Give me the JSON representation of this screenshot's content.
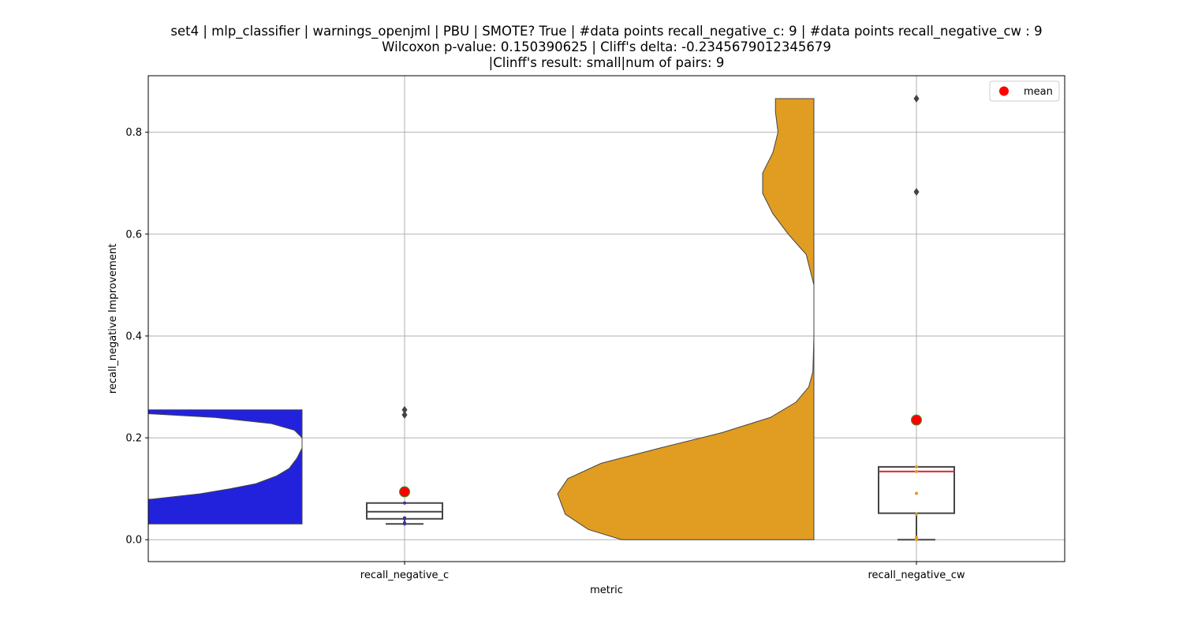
{
  "title_lines": [
    "set4 | mlp_classifier | warnings_openjml | PBU | SMOTE? True | #data points recall_negative_c: 9 | #data points recall_negative_cw : 9",
    "Wilcoxon p-value: 0.150390625 | Cliff's delta: -0.2345679012345679",
    "|Clinff's result: small|num of pairs: 9"
  ],
  "chart_data": {
    "type": "violin+box",
    "xlabel": "metric",
    "ylabel": "recall_negative Improvement",
    "categories": [
      "recall_negative_c",
      "recall_negative_cw"
    ],
    "ylim": [
      -0.043,
      0.911
    ],
    "yticks": [
      0.0,
      0.2,
      0.4,
      0.6,
      0.8
    ],
    "ytick_labels": [
      "0.0",
      "0.2",
      "0.4",
      "0.6",
      "0.8"
    ],
    "grid": true,
    "legend": {
      "placement": "top-right",
      "entries": [
        {
          "label": "mean",
          "color": "#ff0000",
          "marker": "circle"
        }
      ]
    },
    "colors": {
      "c_violin": "#2222dd",
      "cw_violin": "#e09d22",
      "mean_marker": "#ff0000",
      "mean_edge": "#2ca02c",
      "median_cw": "#d62728",
      "box_edge": "#444444",
      "outlier": "#444444",
      "grid": "#b0b0b0"
    },
    "series": [
      {
        "category": "recall_negative_c",
        "violin_side": "left",
        "violin_range": [
          0.031,
          0.255
        ],
        "violin_profile": [
          [
            0.031,
            1.0
          ],
          [
            0.066,
            1.0
          ],
          [
            0.072,
            0.78
          ],
          [
            0.08,
            0.58
          ],
          [
            0.09,
            0.4
          ],
          [
            0.1,
            0.28
          ],
          [
            0.11,
            0.18
          ],
          [
            0.125,
            0.1
          ],
          [
            0.14,
            0.05
          ],
          [
            0.16,
            0.02
          ],
          [
            0.18,
            0.0
          ],
          [
            0.2,
            0.0
          ],
          [
            0.215,
            0.03
          ],
          [
            0.228,
            0.12
          ],
          [
            0.24,
            0.34
          ],
          [
            0.248,
            0.62
          ],
          [
            0.252,
            0.78
          ],
          [
            0.255,
            0.78
          ]
        ],
        "box": {
          "q1": 0.041,
          "median": 0.055,
          "q3": 0.072,
          "whisker_low": 0.031,
          "whisker_high": 0.072
        },
        "outliers": [
          0.245,
          0.255
        ],
        "points": [
          0.031,
          0.033,
          0.041,
          0.043,
          0.072
        ],
        "mean": 0.094
      },
      {
        "category": "recall_negative_cw",
        "violin_side": "left",
        "violin_range": [
          0.0,
          0.866
        ],
        "violin_profile": [
          [
            0.0,
            0.75
          ],
          [
            0.02,
            0.88
          ],
          [
            0.05,
            0.97
          ],
          [
            0.09,
            1.0
          ],
          [
            0.12,
            0.96
          ],
          [
            0.15,
            0.83
          ],
          [
            0.18,
            0.6
          ],
          [
            0.21,
            0.36
          ],
          [
            0.24,
            0.17
          ],
          [
            0.27,
            0.07
          ],
          [
            0.3,
            0.02
          ],
          [
            0.33,
            0.004
          ],
          [
            0.4,
            0.0
          ],
          [
            0.5,
            0.0
          ],
          [
            0.56,
            0.03
          ],
          [
            0.6,
            0.1
          ],
          [
            0.64,
            0.16
          ],
          [
            0.68,
            0.2
          ],
          [
            0.72,
            0.2
          ],
          [
            0.76,
            0.16
          ],
          [
            0.8,
            0.14
          ],
          [
            0.84,
            0.15
          ],
          [
            0.866,
            0.15
          ]
        ],
        "box": {
          "q1": 0.052,
          "median": 0.134,
          "q3": 0.143,
          "whisker_low": 0.0,
          "whisker_high": 0.143
        },
        "outliers": [
          0.683,
          0.866
        ],
        "points": [
          0.0,
          0.005,
          0.05,
          0.091,
          0.134,
          0.143
        ],
        "mean": 0.235
      }
    ]
  }
}
